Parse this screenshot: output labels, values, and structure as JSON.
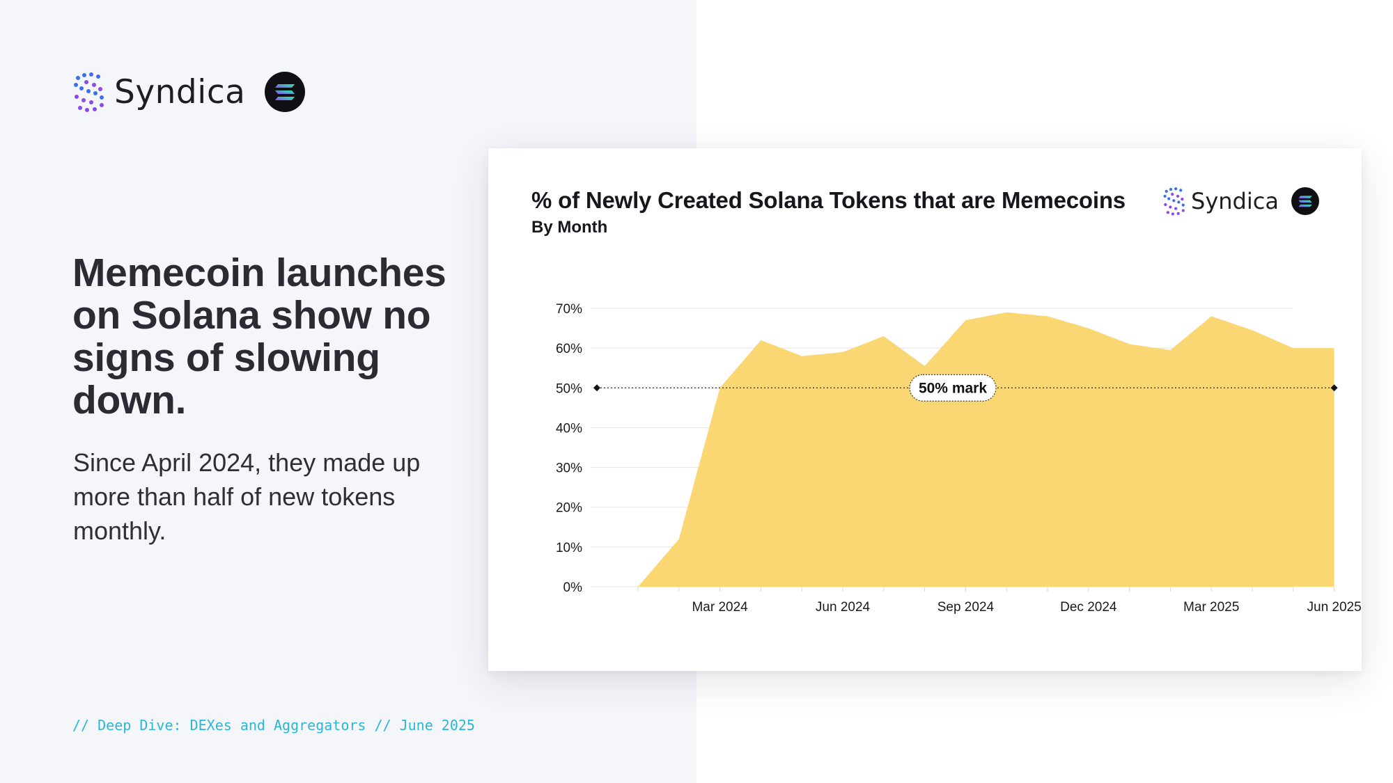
{
  "brand": {
    "name": "Syndica"
  },
  "icons": {
    "logo": "syndica-logo-icon",
    "solana": "solana-badge-icon"
  },
  "headline": "Memecoin launches on Solana show no signs of slowing down.",
  "subhead": "Since April 2024, they made up more than half of new tokens monthly.",
  "footer": "// Deep Dive: DEXes and Aggregators // June 2025",
  "colors": {
    "area_fill": "#fbd774",
    "gridline": "#e4e4e4",
    "panel_bg": "#f5f6fa",
    "accent_cyan": "#2ab7d6",
    "solana_gradient": [
      "#9945ff",
      "#19fb9b"
    ]
  },
  "chart_data": {
    "type": "area",
    "title": "% of Newly Created Solana Tokens that are Memecoins",
    "subtitle": "By Month",
    "xlabel": "",
    "ylabel": "",
    "x": [
      "2024-01",
      "2024-02",
      "2024-03",
      "2024-04",
      "2024-05",
      "2024-06",
      "2024-07",
      "2024-08",
      "2024-09",
      "2024-10",
      "2024-11",
      "2024-12",
      "2025-01",
      "2025-02",
      "2025-03",
      "2025-04",
      "2025-05",
      "2025-06"
    ],
    "series": [
      {
        "values": [
          0,
          12,
          50,
          62,
          58,
          59,
          63,
          55.5,
          67,
          69,
          68,
          65,
          61,
          59.5,
          68,
          64.5,
          60,
          60
        ]
      }
    ],
    "x_ticks": [
      {
        "x": "2024-03",
        "label": "Mar 2024"
      },
      {
        "x": "2024-06",
        "label": "Jun 2024"
      },
      {
        "x": "2024-09",
        "label": "Sep 2024"
      },
      {
        "x": "2024-12",
        "label": "Dec 2024"
      },
      {
        "x": "2025-03",
        "label": "Mar 2025"
      },
      {
        "x": "2025-06",
        "label": "Jun 2025"
      }
    ],
    "y_ticks": [
      "0%",
      "10%",
      "20%",
      "30%",
      "40%",
      "50%",
      "60%",
      "70%"
    ],
    "ylim": [
      0,
      70
    ],
    "grid": "horizontal",
    "reference_line": {
      "y": 50,
      "label": "50% mark"
    },
    "legend": "none"
  }
}
